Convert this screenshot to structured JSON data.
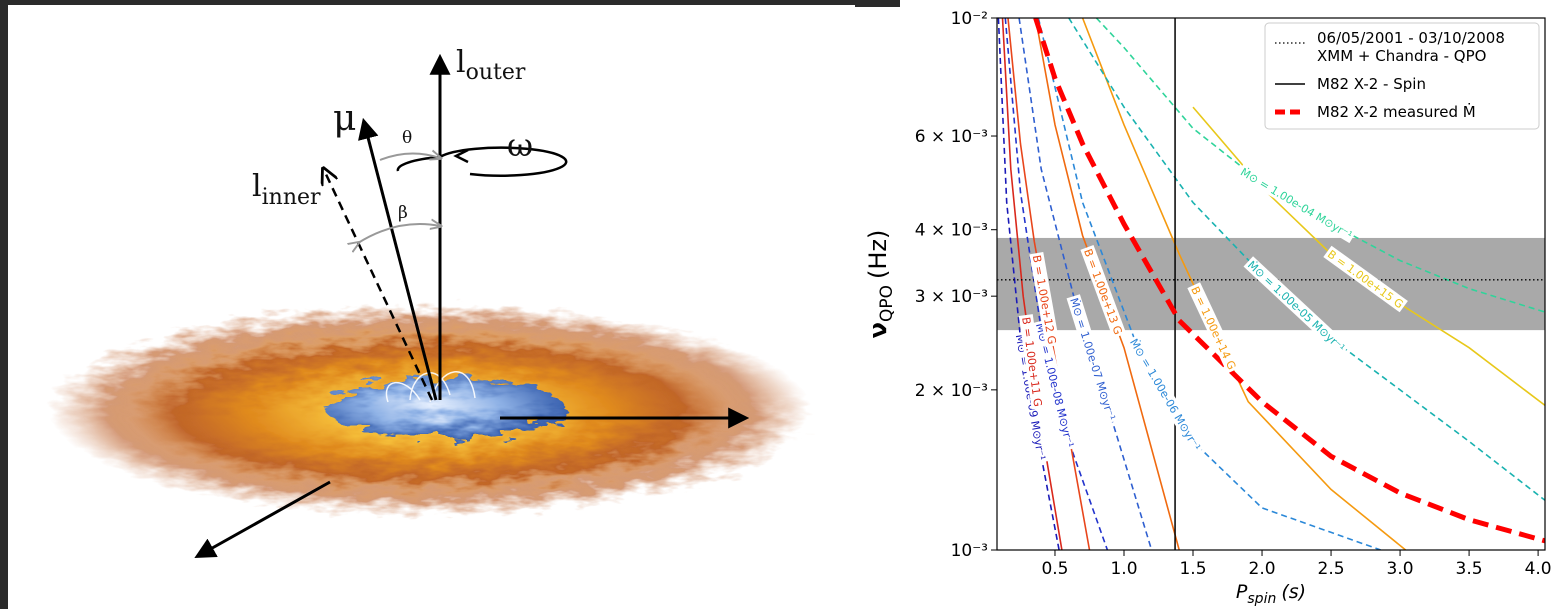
{
  "illustration": {
    "l_outer": {
      "main": "l",
      "sub": "outer"
    },
    "mu": "μ",
    "omega": "ω",
    "theta": "θ",
    "beta": "β",
    "l_inner": {
      "main": "l",
      "sub": "inner"
    }
  },
  "chart_data": {
    "type": "line",
    "x_label": {
      "main": "P",
      "sub": "spin",
      "unit": "(s)"
    },
    "y_label": {
      "main": "ν",
      "sub": "QPO",
      "unit": "(Hz)"
    },
    "xlim": [
      0.08,
      4.05
    ],
    "ylim": [
      0.001,
      0.01
    ],
    "y_scale": "log",
    "xticks": [
      0.5,
      {
        "value": 1,
        "label": "1.0"
      },
      1.5,
      {
        "value": 2,
        "label": "2.0"
      },
      2.5,
      {
        "value": 3,
        "label": "3.0"
      },
      3.5,
      {
        "value": 4,
        "label": "4.0"
      }
    ],
    "yticks": [
      {
        "value": 0.001,
        "label": "10⁻³"
      },
      {
        "value": 0.002,
        "label": "2 × 10⁻³"
      },
      {
        "value": 0.003,
        "label": "3 × 10⁻³"
      },
      {
        "value": 0.004,
        "label": "4 × 10⁻³"
      },
      {
        "value": 0.006,
        "label": "6 × 10⁻³"
      },
      {
        "value": 0.01,
        "label": "10⁻²"
      }
    ],
    "legend": "upper right",
    "qpo": {
      "name": [
        "06/05/2001 - 03/10/2008",
        "XMM + Chandra - QPO"
      ],
      "value": 0.00322,
      "band": [
        0.00259,
        0.00386
      ],
      "color": "#000000",
      "band_color": "#a9a9a9"
    },
    "spin": {
      "name": "M82 X-2 - Spin",
      "value": 1.37,
      "color": "#000000"
    },
    "series": [
      {
        "name": "M82 X-2 measured Ṁ",
        "color": "#ff0000",
        "x": [
          0.36,
          0.5,
          0.7,
          1.0,
          1.4,
          2.0,
          2.5,
          3.0,
          3.5,
          4.05
        ],
        "values": [
          0.01,
          0.0077,
          0.0058,
          0.0041,
          0.0027,
          0.0019,
          0.0015,
          0.00128,
          0.00114,
          0.00104
        ]
      }
    ],
    "curves": [
      {
        "label": "Ṁ⊙ = 1.00e-09 M⊙yr⁻¹",
        "color": "#1a1ab8",
        "style": "dashed",
        "x": [
          0.09,
          0.15,
          0.25,
          0.4,
          0.53
        ],
        "values": [
          0.01,
          0.0045,
          0.0025,
          0.0015,
          0.001
        ]
      },
      {
        "label": "B = 1.00e+11 G",
        "color": "#d9281c",
        "style": "solid",
        "x": [
          0.12,
          0.18,
          0.27,
          0.4,
          0.55
        ],
        "values": [
          0.01,
          0.0052,
          0.003,
          0.0017,
          0.001
        ]
      },
      {
        "label": "Ṁ⊙ = 1.00e-08 M⊙yr⁻¹",
        "color": "#2233cc",
        "style": "dashed",
        "x": [
          0.14,
          0.25,
          0.4,
          0.6,
          0.88
        ],
        "values": [
          0.01,
          0.0047,
          0.0026,
          0.0016,
          0.001
        ]
      },
      {
        "label": "B = 1.00e+12 G",
        "color": "#e8461c",
        "style": "solid",
        "x": [
          0.16,
          0.25,
          0.35,
          0.5,
          0.75
        ],
        "values": [
          0.01,
          0.0058,
          0.0038,
          0.0023,
          0.001
        ]
      },
      {
        "label": "Ṁ⊙ = 1.00e-07 M⊙yr⁻¹",
        "color": "#2f5fd0",
        "style": "dashed",
        "x": [
          0.24,
          0.4,
          0.65,
          0.9,
          1.2
        ],
        "values": [
          0.01,
          0.0052,
          0.0029,
          0.0018,
          0.001
        ]
      },
      {
        "label": "B = 1.00e+13 G",
        "color": "#f06a10",
        "style": "solid",
        "x": [
          0.36,
          0.5,
          0.7,
          1.0,
          1.4
        ],
        "values": [
          0.01,
          0.0063,
          0.0039,
          0.0024,
          0.001
        ]
      },
      {
        "label": "Ṁ⊙ = 1.00e-06 M⊙yr⁻¹",
        "color": "#2b88d8",
        "style": "dashed",
        "x": [
          0.38,
          0.7,
          1.1,
          1.5,
          2.0,
          2.86
        ],
        "values": [
          0.01,
          0.0045,
          0.0024,
          0.0016,
          0.0012,
          0.001
        ]
      },
      {
        "label": "B = 1.00e+14 G",
        "color": "#f59a10",
        "style": "solid",
        "x": [
          0.7,
          1.0,
          1.4,
          1.9,
          2.5,
          3.04
        ],
        "values": [
          0.01,
          0.0063,
          0.0036,
          0.0019,
          0.0013,
          0.001
        ]
      },
      {
        "label": "Ṁ⊙ = 1.00e-05 M⊙yr⁻¹",
        "color": "#19b2b0",
        "style": "dashed",
        "x": [
          0.6,
          1.0,
          1.5,
          2.0,
          2.5,
          3.0,
          3.5,
          4.05
        ],
        "values": [
          0.01,
          0.0068,
          0.0045,
          0.0033,
          0.0025,
          0.002,
          0.0016,
          0.00124
        ]
      },
      {
        "label": "Ṁ⊙ = 1.00e-04 M⊙yr⁻¹",
        "color": "#2fd49a",
        "style": "dashed",
        "x": [
          0.8,
          1.0,
          1.5,
          2.0,
          2.5,
          3.0,
          3.5,
          4.05
        ],
        "values": [
          0.01,
          0.0088,
          0.0062,
          0.0049,
          0.0041,
          0.0035,
          0.0031,
          0.0028
        ]
      },
      {
        "label": "B = 1.00e+15 G",
        "color": "#e8c81a",
        "style": "solid",
        "x": [
          1.5,
          2.0,
          2.5,
          3.0,
          3.5,
          4.05
        ],
        "values": [
          0.0068,
          0.0048,
          0.0036,
          0.0029,
          0.0024,
          0.00187
        ]
      }
    ]
  }
}
